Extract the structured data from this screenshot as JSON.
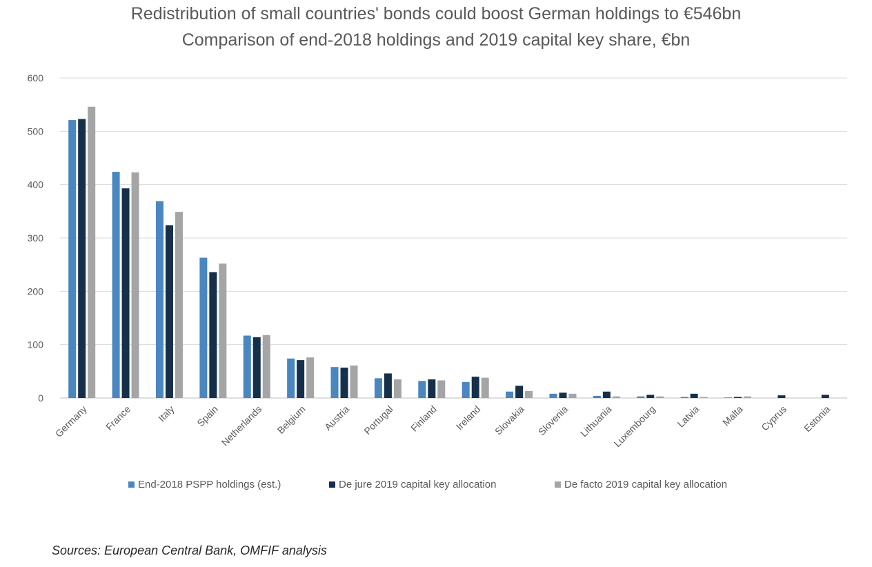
{
  "chart_data": {
    "type": "bar",
    "title": "Redistribution of small countries' bonds could boost German holdings to €546bn",
    "subtitle": "Comparison of end-2018 holdings and 2019 capital key share, €bn",
    "xlabel": "",
    "ylabel": "",
    "ylim": [
      0,
      600
    ],
    "yticks": [
      0,
      100,
      200,
      300,
      400,
      500,
      600
    ],
    "grid": true,
    "legend_position": "bottom",
    "categories": [
      "Germany",
      "France",
      "Italy",
      "Spain",
      "Netherlands",
      "Belgium",
      "Austria",
      "Portugal",
      "Finland",
      "Ireland",
      "Slovakia",
      "Slovenia",
      "Lithuania",
      "Luxembourg",
      "Latvia",
      "Malta",
      "Cyprus",
      "Estonia"
    ],
    "series": [
      {
        "name": "End-2018 PSPP holdings (est.)",
        "color": "#4a86c0",
        "values": [
          521,
          424,
          369,
          263,
          117,
          74,
          58,
          37,
          32,
          30,
          12,
          8,
          4,
          3,
          2,
          1,
          0,
          0
        ]
      },
      {
        "name": "De jure 2019 capital key allocation",
        "color": "#16304c",
        "values": [
          523,
          393,
          324,
          236,
          114,
          71,
          57,
          46,
          35,
          40,
          23,
          10,
          12,
          6,
          8,
          2,
          5,
          6
        ]
      },
      {
        "name": "De facto 2019 capital key allocation",
        "color": "#a5a5a5",
        "values": [
          546,
          423,
          349,
          252,
          118,
          76,
          61,
          35,
          33,
          38,
          13,
          8,
          3,
          3,
          2,
          3,
          0,
          0
        ]
      }
    ]
  },
  "source": "Sources: European Central Bank, OMFIF analysis"
}
